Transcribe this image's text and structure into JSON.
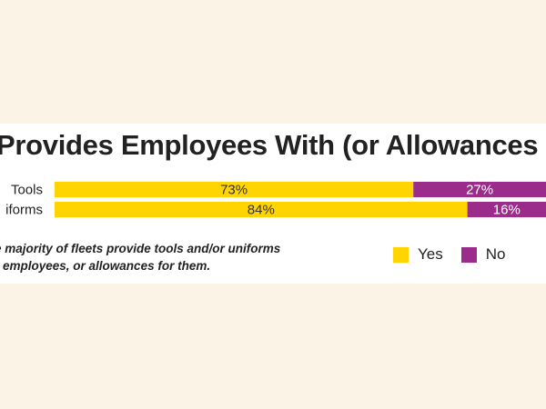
{
  "chart_data": {
    "type": "bar",
    "orientation": "horizontal",
    "stacked": true,
    "title": "Provides Employees With (or Allowances for",
    "categories": [
      "Tools",
      "iforms"
    ],
    "series": [
      {
        "name": "Yes",
        "color": "#ffd400",
        "values": [
          73,
          84
        ],
        "labels": [
          "73%",
          "84%"
        ]
      },
      {
        "name": "No",
        "color": "#9b2c8c",
        "values": [
          27,
          16
        ],
        "labels": [
          "27%",
          "16%"
        ]
      }
    ],
    "xlim": [
      0,
      100
    ],
    "legend": "bottom-right",
    "caption": "e majority of fleets provide tools and/or uniforms\nr employees, or allowances for them."
  }
}
